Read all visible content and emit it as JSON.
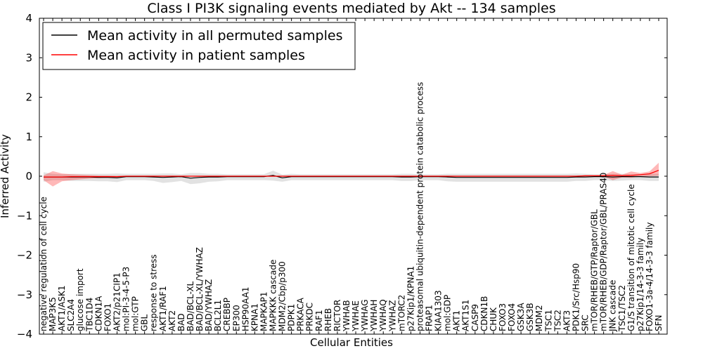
{
  "chart_data": {
    "type": "line",
    "title": "Class I PI3K signaling events mediated by Akt -- 134 samples",
    "xlabel": "Cellular Entities",
    "ylabel": "Inferred Activity",
    "ylim": [
      -4,
      4
    ],
    "yticks": [
      -4,
      -3,
      -2,
      -1,
      0,
      1,
      2,
      3,
      4
    ],
    "ytick_labels": [
      "−4",
      "−3",
      "−2",
      "−1",
      "0",
      "1",
      "2",
      "3",
      "4"
    ],
    "legend": {
      "position": "top-left",
      "entries": [
        {
          "label": "Mean activity in all permuted samples",
          "color": "#000000"
        },
        {
          "label": "Mean activity in patient samples",
          "color": "#ff0000"
        }
      ]
    },
    "categories": [
      "negative regulation of cell cycle",
      "MAP3K5",
      "AKT1/ASK1",
      "SLC2A4",
      "glucose import",
      "TBC1D4",
      "CDKN1A",
      "FOXO1",
      "AKT2/p21CIP1",
      "mol:PI-3-4-5-P3",
      "mol:GTP",
      "GBL",
      "response to stress",
      "AKT1/RAF1",
      "AKT2",
      "BAD",
      "BAD/BCL-XL",
      "BAD/BCL-XL/YWHAZ",
      "BAD/YWHAZ",
      "BCL2L1",
      "CREBBP",
      "EP300",
      "HSP90AA1",
      "KPNA1",
      "MAPKAP1",
      "MAPKKK cascade",
      "MDM2/Cbp/p300",
      "PDPK1",
      "PRKACA",
      "PRKDC",
      "RAF1",
      "RHEB",
      "RICTOR",
      "YWHAB",
      "YWHAE",
      "YWHAG",
      "YWHAH",
      "YWHAQ",
      "YWHAZ",
      "mTORC2",
      "p27Kip1/KPNA1",
      "proteasomal ubiquitin-dependent protein catabolic process",
      "FRAP1",
      "KIAA1303",
      "mol:GDP",
      "AKT1",
      "AKT1S1",
      "CASP9",
      "CDKN1B",
      "CHUK",
      "FOXO3",
      "FOXO4",
      "GSK3A",
      "GSK3B",
      "MDM2",
      "TSC1",
      "TSC2",
      "AKT3",
      "PDK1/Src/Hsp90",
      "SRC",
      "mTOR/RHEB/GTP/Raptor/GBL",
      "mTOR/RHEB/GDP/Raptor/GBL/PRAS40",
      "JNK cascade",
      "TSC1/TSC2",
      "G1/S transition of mitotic cell cycle",
      "p27Kip1/14-3-3 family",
      "FOXO1-3a-4/14-3-3 family",
      "SFN"
    ],
    "series": [
      {
        "name": "Mean activity in all permuted samples",
        "color": "#000000",
        "values": [
          -0.02,
          -0.02,
          -0.02,
          -0.02,
          -0.02,
          -0.02,
          -0.03,
          -0.03,
          -0.04,
          -0.01,
          -0.01,
          -0.01,
          -0.02,
          -0.03,
          -0.02,
          -0.01,
          -0.05,
          -0.03,
          -0.02,
          -0.02,
          -0.01,
          -0.01,
          -0.01,
          -0.01,
          -0.01,
          0.02,
          -0.04,
          -0.01,
          -0.01,
          -0.01,
          -0.01,
          -0.01,
          -0.01,
          -0.01,
          -0.01,
          -0.01,
          -0.01,
          -0.01,
          -0.01,
          -0.02,
          -0.02,
          -0.01,
          -0.01,
          -0.01,
          -0.02,
          -0.03,
          -0.03,
          -0.03,
          -0.03,
          -0.03,
          -0.03,
          -0.03,
          -0.03,
          -0.03,
          -0.03,
          -0.03,
          -0.03,
          -0.03,
          -0.02,
          -0.02,
          -0.01,
          -0.01,
          -0.02,
          -0.01,
          -0.01,
          -0.01,
          -0.02,
          -0.02
        ],
        "band_upper": [
          0.1,
          0.06,
          0.05,
          0.06,
          0.06,
          0.06,
          0.06,
          0.06,
          0.07,
          0.06,
          0.06,
          0.06,
          0.06,
          0.07,
          0.07,
          0.05,
          0.08,
          0.08,
          0.06,
          0.06,
          0.05,
          0.05,
          0.05,
          0.05,
          0.05,
          0.14,
          0.04,
          0.06,
          0.05,
          0.05,
          0.05,
          0.05,
          0.05,
          0.05,
          0.05,
          0.05,
          0.05,
          0.05,
          0.05,
          0.06,
          0.06,
          0.05,
          0.05,
          0.05,
          0.06,
          0.06,
          0.06,
          0.06,
          0.06,
          0.06,
          0.06,
          0.06,
          0.06,
          0.06,
          0.06,
          0.06,
          0.06,
          0.06,
          0.07,
          0.06,
          0.05,
          0.05,
          0.06,
          0.06,
          0.05,
          0.05,
          0.06,
          0.06
        ],
        "band_lower": [
          -0.14,
          -0.1,
          -0.1,
          -0.12,
          -0.12,
          -0.12,
          -0.13,
          -0.13,
          -0.15,
          -0.1,
          -0.1,
          -0.1,
          -0.12,
          -0.17,
          -0.15,
          -0.12,
          -0.2,
          -0.18,
          -0.14,
          -0.13,
          -0.1,
          -0.1,
          -0.1,
          -0.1,
          -0.1,
          -0.11,
          -0.14,
          -0.1,
          -0.1,
          -0.1,
          -0.1,
          -0.1,
          -0.1,
          -0.1,
          -0.1,
          -0.1,
          -0.1,
          -0.1,
          -0.1,
          -0.12,
          -0.12,
          -0.1,
          -0.1,
          -0.1,
          -0.13,
          -0.14,
          -0.14,
          -0.14,
          -0.14,
          -0.14,
          -0.14,
          -0.14,
          -0.14,
          -0.14,
          -0.14,
          -0.14,
          -0.14,
          -0.14,
          -0.12,
          -0.12,
          -0.1,
          -0.1,
          -0.12,
          -0.11,
          -0.1,
          -0.1,
          -0.12,
          -0.12
        ]
      },
      {
        "name": "Mean activity in patient samples",
        "color": "#ff0000",
        "values": [
          -0.02,
          -0.02,
          -0.02,
          -0.01,
          -0.01,
          -0.01,
          -0.01,
          -0.01,
          -0.01,
          0.0,
          0.0,
          0.0,
          0.0,
          0.0,
          0.0,
          0.0,
          0.0,
          0.0,
          0.0,
          0.0,
          0.0,
          0.0,
          0.0,
          0.0,
          0.0,
          0.0,
          0.0,
          0.0,
          0.0,
          0.0,
          0.0,
          0.0,
          0.0,
          0.0,
          0.0,
          0.0,
          0.0,
          0.0,
          0.0,
          0.0,
          0.0,
          0.0,
          0.0,
          0.0,
          0.0,
          0.0,
          0.0,
          0.0,
          0.0,
          0.0,
          0.0,
          0.0,
          0.0,
          0.0,
          0.0,
          0.0,
          0.0,
          0.0,
          0.0,
          0.01,
          0.01,
          0.01,
          0.02,
          0.01,
          0.02,
          0.04,
          0.06,
          0.15
        ],
        "band_upper": [
          0.02,
          0.13,
          0.07,
          0.05,
          0.04,
          0.03,
          0.02,
          0.02,
          0.01,
          0.01,
          0.01,
          0.01,
          0.01,
          0.01,
          0.01,
          0.01,
          0.01,
          0.01,
          0.01,
          0.01,
          0.01,
          0.01,
          0.01,
          0.01,
          0.01,
          0.01,
          0.01,
          0.01,
          0.01,
          0.01,
          0.01,
          0.01,
          0.01,
          0.01,
          0.01,
          0.01,
          0.01,
          0.01,
          0.01,
          0.01,
          0.01,
          0.01,
          0.01,
          0.01,
          0.01,
          0.01,
          0.01,
          0.01,
          0.01,
          0.01,
          0.01,
          0.01,
          0.01,
          0.01,
          0.01,
          0.01,
          0.01,
          0.01,
          0.01,
          0.02,
          0.02,
          0.03,
          0.13,
          0.04,
          0.12,
          0.08,
          0.12,
          0.34
        ],
        "band_lower": [
          -0.1,
          -0.26,
          -0.13,
          -0.1,
          -0.08,
          -0.06,
          -0.05,
          -0.04,
          -0.03,
          -0.01,
          -0.01,
          -0.01,
          -0.01,
          -0.01,
          -0.01,
          -0.01,
          -0.01,
          -0.01,
          -0.01,
          -0.01,
          -0.01,
          -0.01,
          -0.01,
          -0.01,
          -0.01,
          -0.01,
          -0.01,
          -0.01,
          -0.01,
          -0.01,
          -0.01,
          -0.01,
          -0.01,
          -0.01,
          -0.01,
          -0.01,
          -0.01,
          -0.01,
          -0.01,
          -0.01,
          -0.01,
          -0.01,
          -0.01,
          -0.01,
          -0.01,
          -0.01,
          -0.01,
          -0.01,
          -0.01,
          -0.01,
          -0.01,
          -0.01,
          -0.01,
          -0.01,
          -0.01,
          -0.01,
          -0.01,
          -0.01,
          -0.01,
          -0.01,
          -0.01,
          -0.01,
          -0.1,
          -0.03,
          -0.04,
          -0.01,
          0.0,
          0.01
        ]
      }
    ]
  }
}
